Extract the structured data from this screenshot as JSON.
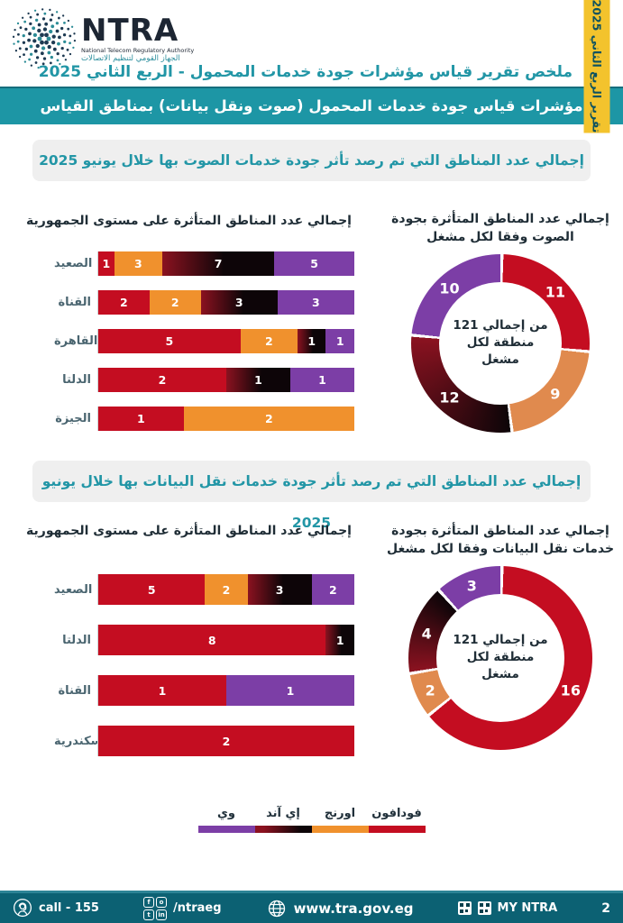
{
  "header": {
    "logo": {
      "brand": "NTRA",
      "subtitle_en": "National Telecom Regulatory Authority",
      "subtitle_ar": "الجهاز القومي لتنظيم الاتصالات"
    },
    "side_tab": "تقرير الربع الثاني 2025",
    "title": "ملخص تقرير قياس مؤشرات جودة خدمات المحمول - الربع الثاني 2025",
    "banner": "مؤشرات قياس جودة خدمات المحمول (صوت ونقل بيانات)  بمناطق القياس"
  },
  "sections": [
    {
      "banner": "إجمالي عدد المناطق التي تم رصد تأثر جودة خدمات الصوت بها خلال يونيو 2025"
    },
    {
      "banner": "إجمالي عدد المناطق التي تم رصد تأثر جودة خدمات نقل البيانات بها خلال يونيو 2025"
    }
  ],
  "chart_data": [
    {
      "type": "bar",
      "subtype": "horizontal-100pct-stacked",
      "title": "إجمالي عدد المناطق المتأثرة على مستوى الجمهورية",
      "categories": [
        "الصعيد",
        "القناة",
        "القاهرة",
        "الدلتا",
        "الجيزة"
      ],
      "series": [
        {
          "name": "فودافون",
          "values": [
            1,
            2,
            5,
            2,
            1
          ]
        },
        {
          "name": "اورنج",
          "values": [
            3,
            2,
            2,
            0,
            2
          ]
        },
        {
          "name": "إي آند",
          "values": [
            7,
            3,
            1,
            1,
            0
          ]
        },
        {
          "name": "وي",
          "values": [
            5,
            3,
            1,
            1,
            0
          ]
        }
      ]
    },
    {
      "type": "pie",
      "subtype": "donut",
      "title": "إجمالي عدد المناطق المتأثرة بجودة الصوت وفقا لكل مشغل",
      "title_lines": [
        "إجمالي عدد المناطق المتأثرة بجودة",
        "الصوت وفقا لكل مشغل"
      ],
      "labels": [
        "فودافون",
        "اورنج",
        "إي آند",
        "وي"
      ],
      "values": [
        11,
        9,
        12,
        10
      ],
      "center_text": "من إجمالي 121 منطقة لكل مشغل",
      "center_lines": [
        "من إجمالي 121",
        "منطقة لكل",
        "مشغل"
      ]
    },
    {
      "type": "bar",
      "subtype": "horizontal-100pct-stacked",
      "title": "إجمالي عدد المناطق المتأثرة على مستوى الجمهورية",
      "categories": [
        "الصعيد",
        "الدلتا",
        "القناة",
        "الإسكندرية"
      ],
      "series": [
        {
          "name": "فودافون",
          "values": [
            5,
            8,
            1,
            2
          ]
        },
        {
          "name": "اورنج",
          "values": [
            2,
            0,
            0,
            0
          ]
        },
        {
          "name": "إي آند",
          "values": [
            3,
            1,
            0,
            0
          ]
        },
        {
          "name": "وي",
          "values": [
            2,
            0,
            1,
            0
          ]
        }
      ]
    },
    {
      "type": "pie",
      "subtype": "donut",
      "title": "إجمالي عدد المناطق المتأثرة بجودة خدمات نقل البيانات وفقا لكل مشغل",
      "title_lines": [
        "إجمالي عدد المناطق المتأثرة بجودة",
        "خدمات نقل البيانات وفقا لكل مشغل"
      ],
      "labels": [
        "فودافون",
        "اورنج",
        "إي آند",
        "وي"
      ],
      "values": [
        16,
        2,
        4,
        3
      ],
      "center_text": "من إجمالي 121 منطقة لكل مشغل",
      "center_lines": [
        "من إجمالي 121",
        "منطقة لكل",
        "مشغل"
      ]
    }
  ],
  "legend": {
    "items": [
      {
        "label": "فودافون",
        "color": "#C40D21"
      },
      {
        "label": "اورنج",
        "color": "#F0912D"
      },
      {
        "label": "إي آند",
        "color": "gradient-maroon-black"
      },
      {
        "label": "وي",
        "color": "#7C3EA6"
      }
    ]
  },
  "colors": {
    "teal": "#1D96A5",
    "teal_dark": "#0C6173",
    "yellow_tab": "#F3C32D",
    "banner_gray": "#EFEFEF",
    "vodafone_red": "#C40D21",
    "orange": "#F0912D",
    "orange_donut": "#E08A4E",
    "egand_maroon": "#8B1220",
    "egand_black": "#0D0508",
    "we_purple": "#7C3EA6"
  },
  "footer": {
    "call": "call - 155",
    "social_handle": "/ntraeg",
    "social_icons": [
      "facebook-icon",
      "instagram-icon",
      "twitter-icon",
      "linkedin-icon"
    ],
    "website": "www.tra.gov.eg",
    "app_label": "MY NTRA",
    "page_number": "2"
  }
}
